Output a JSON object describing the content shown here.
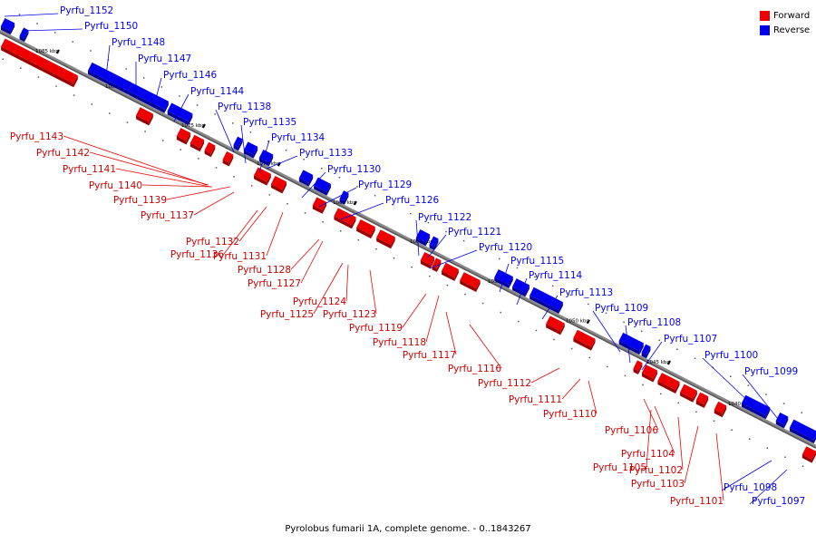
{
  "caption": "Pyrolobus fumarii 1A, complete genome. - 0..1843267",
  "legend": [
    {
      "label": "Forward",
      "color": "#ee0000"
    },
    {
      "label": "Reverse",
      "color": "#0000ee"
    }
  ],
  "colors": {
    "forward": "#ee0000",
    "reverse": "#0000ee",
    "backbone": "#888888"
  },
  "ticks": [
    "1085 kbp",
    "1080 kbp",
    "1075 kbp",
    "1070 kbp",
    "1065 kbp",
    "1060 kbp",
    "1055 kbp",
    "1050 kbp",
    "1045 kbp",
    "1040 kbp"
  ],
  "reverse_genes": [
    "Pyrfu_1152",
    "Pyrfu_1150",
    "Pyrfu_1148",
    "Pyrfu_1147",
    "Pyrfu_1146",
    "Pyrfu_1144",
    "Pyrfu_1138",
    "Pyrfu_1135",
    "Pyrfu_1134",
    "Pyrfu_1133",
    "Pyrfu_1130",
    "Pyrfu_1129",
    "Pyrfu_1126",
    "Pyrfu_1122",
    "Pyrfu_1121",
    "Pyrfu_1120",
    "Pyrfu_1115",
    "Pyrfu_1114",
    "Pyrfu_1113",
    "Pyrfu_1109",
    "Pyrfu_1108",
    "Pyrfu_1107",
    "Pyrfu_1100",
    "Pyrfu_1099",
    "Pyrfu_1098",
    "Pyrfu_1097"
  ],
  "forward_genes": [
    "Pyrfu_1143",
    "Pyrfu_1142",
    "Pyrfu_1141",
    "Pyrfu_1140",
    "Pyrfu_1139",
    "Pyrfu_1137",
    "Pyrfu_1132",
    "Pyrfu_1136",
    "Pyrfu_1131",
    "Pyrfu_1128",
    "Pyrfu_1127",
    "Pyrfu_1124",
    "Pyrfu_1125",
    "Pyrfu_1123",
    "Pyrfu_1119",
    "Pyrfu_1118",
    "Pyrfu_1117",
    "Pyrfu_1116",
    "Pyrfu_1112",
    "Pyrfu_1111",
    "Pyrfu_1110",
    "Pyrfu_1106",
    "Pyrfu_1104",
    "Pyrfu_1105",
    "Pyrfu_1102",
    "Pyrfu_1103",
    "Pyrfu_1101"
  ]
}
